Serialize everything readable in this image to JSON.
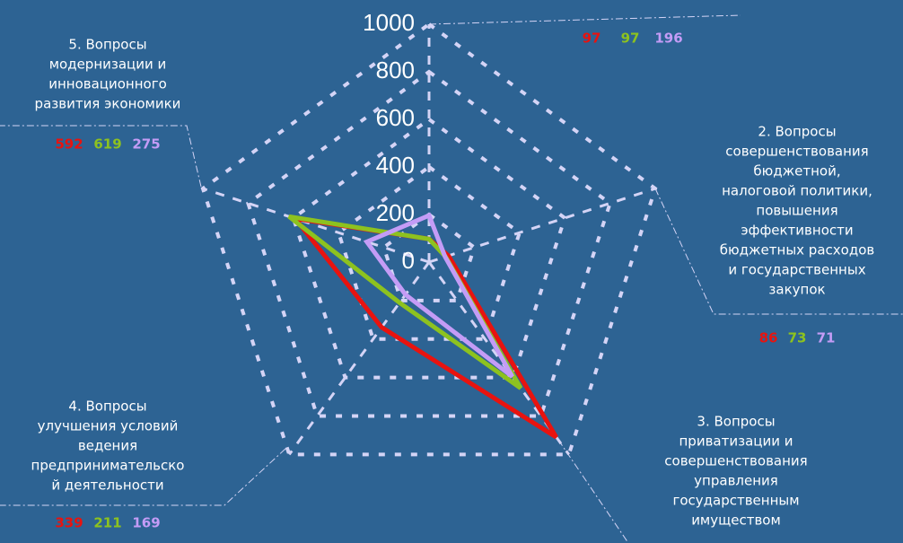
{
  "chart_data": {
    "type": "radar",
    "categories": [
      null,
      [
        "2. Вопросы",
        "совершенствования",
        "бюджетной,",
        "налоговой политики,",
        "повышения",
        "эффективности",
        "бюджетных расходов",
        "и государственных",
        "закупок"
      ],
      [
        "3. Вопросы",
        "приватизации и",
        "совершенствования",
        "управления",
        "государственным",
        "имуществом"
      ],
      [
        "4. Вопросы",
        "улучшения условий",
        "ведения",
        "предпринимательско",
        "й деятельности"
      ],
      [
        "5. Вопросы",
        "модернизации и",
        "инновационного",
        "развития экономики"
      ]
    ],
    "series": [
      {
        "color": "#e8130f",
        "values": [
          97,
          86,
          910,
          339,
          592
        ]
      },
      {
        "color": "#8dc21f",
        "values": [
          97,
          73,
          655,
          211,
          619
        ]
      },
      {
        "color": "#c49cf6",
        "values": [
          196,
          71,
          595,
          169,
          275
        ]
      }
    ],
    "rlim": [
      0,
      1000
    ],
    "rticks": [
      0,
      200,
      400,
      600,
      800,
      1000
    ],
    "grid_color": "#d4d4f6"
  }
}
